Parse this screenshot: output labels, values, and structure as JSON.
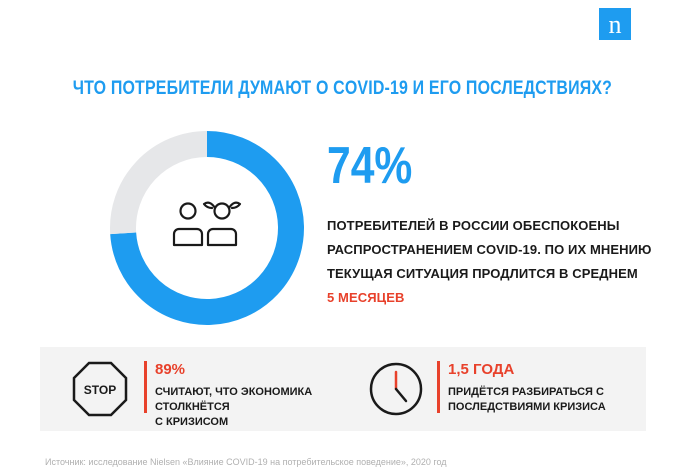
{
  "header": {
    "logo_text": "n",
    "title": "ЧТО ПОТРЕБИТЕЛИ ДУМАЮТ О COVID-19 И ЕГО ПОСЛЕДСТВИЯХ?"
  },
  "colors": {
    "accent_blue": "#1e9cf0",
    "accent_red": "#e8412b",
    "donut_track": "#e6e7e9",
    "band_bg": "#f3f3f3"
  },
  "chart_data": {
    "type": "pie",
    "subtype": "donut",
    "values": [
      74,
      26
    ],
    "center_icon": "people-icon"
  },
  "main": {
    "big_percent": "74%",
    "desc_lines": [
      "ПОТРЕБИТЕЛЕЙ В РОССИИ ОБЕСПОКОЕНЫ",
      "РАСПРОСТРАНЕНИЕМ COVID-19. ПО ИХ МНЕНИЮ",
      "ТЕКУЩАЯ СИТУАЦИЯ ПРОДЛИТСЯ В СРЕДНЕМ"
    ],
    "desc_accent": "5 МЕСЯЦЕВ"
  },
  "stats": [
    {
      "icon": "stop-sign-icon",
      "icon_text": "STOP",
      "value": "89%",
      "lines": [
        "СЧИТАЮТ, ЧТО ЭКОНОМИКА СТОЛКНЁТСЯ",
        "С КРИЗИСОМ"
      ]
    },
    {
      "icon": "clock-icon",
      "value": "1,5 ГОДА",
      "lines": [
        "ПРИДЁТСЯ РАЗБИРАТЬСЯ С",
        "ПОСЛЕДСТВИЯМИ КРИЗИСА"
      ]
    }
  ],
  "footer": {
    "source": "Источник: исследование Nielsen «Влияние COVID-19 на потребительское поведение», 2020 год"
  }
}
